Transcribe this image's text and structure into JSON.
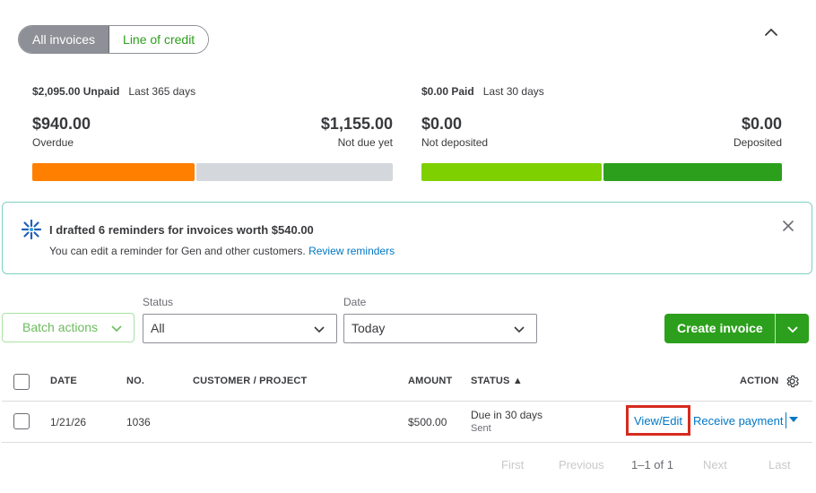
{
  "toggle": {
    "all_invoices": "All invoices",
    "line_of_credit": "Line of credit"
  },
  "unpaid": {
    "total": "$2,095.00 Unpaid",
    "period": "Last 365 days",
    "overdue_amount": "$940.00",
    "overdue_label": "Overdue",
    "not_due_amount": "$1,155.00",
    "not_due_label": "Not due yet",
    "colors": {
      "overdue": "#ff8000",
      "not_due": "#d4d7dc"
    }
  },
  "paid": {
    "total": "$0.00 Paid",
    "period": "Last 30 days",
    "not_deposited_amount": "$0.00",
    "not_deposited_label": "Not deposited",
    "deposited_amount": "$0.00",
    "deposited_label": "Deposited",
    "colors": {
      "not_deposited": "#7fd000",
      "deposited": "#2ca01c"
    }
  },
  "reminder": {
    "title": "I drafted 6 reminders for invoices worth $540.00",
    "description": "You can edit a reminder for Gen and other customers.",
    "link": "Review reminders"
  },
  "filters": {
    "batch_actions": "Batch actions",
    "status_label": "Status",
    "status_value": "All",
    "date_label": "Date",
    "date_value": "Today",
    "create_invoice": "Create invoice"
  },
  "table": {
    "columns": {
      "date": "DATE",
      "no": "NO.",
      "customer": "CUSTOMER / PROJECT",
      "amount": "AMOUNT",
      "status": "STATUS ▲",
      "action": "ACTION"
    },
    "rows": [
      {
        "date": "1/21/26",
        "no": "1036",
        "customer": "",
        "amount": "$500.00",
        "status": "Due in 30 days",
        "status_sub": "Sent",
        "view_edit": "View/Edit",
        "receive_payment": "Receive payment"
      }
    ]
  },
  "pagination": {
    "first": "First",
    "previous": "Previous",
    "info": "1–1 of 1",
    "next": "Next",
    "last": "Last"
  },
  "colors": {
    "accent_green": "#2ca01c",
    "link_blue": "#0077c5",
    "highlight_red": "#d52b1e"
  }
}
